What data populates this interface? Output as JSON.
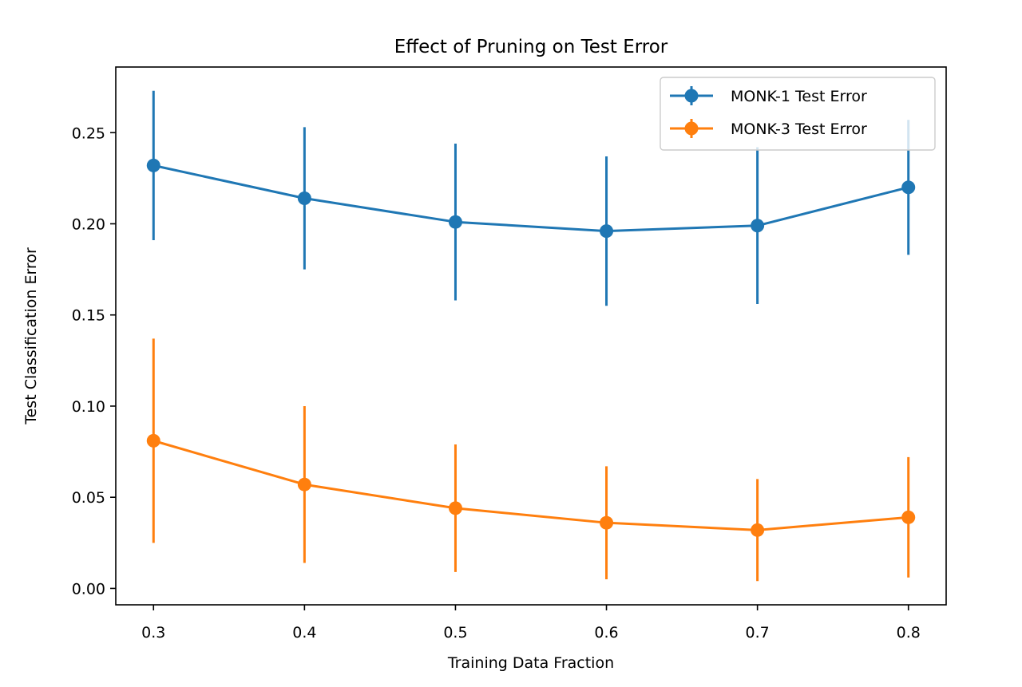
{
  "chart_data": {
    "type": "line",
    "title": "Effect of Pruning on Test Error",
    "xlabel": "Training Data Fraction",
    "ylabel": "Test Classification Error",
    "x": [
      0.3,
      0.4,
      0.5,
      0.6,
      0.7,
      0.8
    ],
    "xlim": [
      0.275,
      0.825
    ],
    "ylim": [
      -0.009,
      0.286
    ],
    "xticks": [
      "0.3",
      "0.4",
      "0.5",
      "0.6",
      "0.7",
      "0.8"
    ],
    "yticks": [
      "0.00",
      "0.05",
      "0.10",
      "0.15",
      "0.20",
      "0.25"
    ],
    "grid": false,
    "error_bars": true,
    "legend_position": "top-right",
    "series": [
      {
        "name": "MONK-1 Test Error",
        "color": "#1f77b4",
        "values": [
          0.232,
          0.214,
          0.201,
          0.196,
          0.199,
          0.22
        ],
        "errors": [
          0.041,
          0.039,
          0.043,
          0.041,
          0.043,
          0.037
        ]
      },
      {
        "name": "MONK-3 Test Error",
        "color": "#ff7f0e",
        "values": [
          0.081,
          0.057,
          0.044,
          0.036,
          0.032,
          0.039
        ],
        "errors": [
          0.056,
          0.043,
          0.035,
          0.031,
          0.028,
          0.033
        ]
      }
    ]
  }
}
